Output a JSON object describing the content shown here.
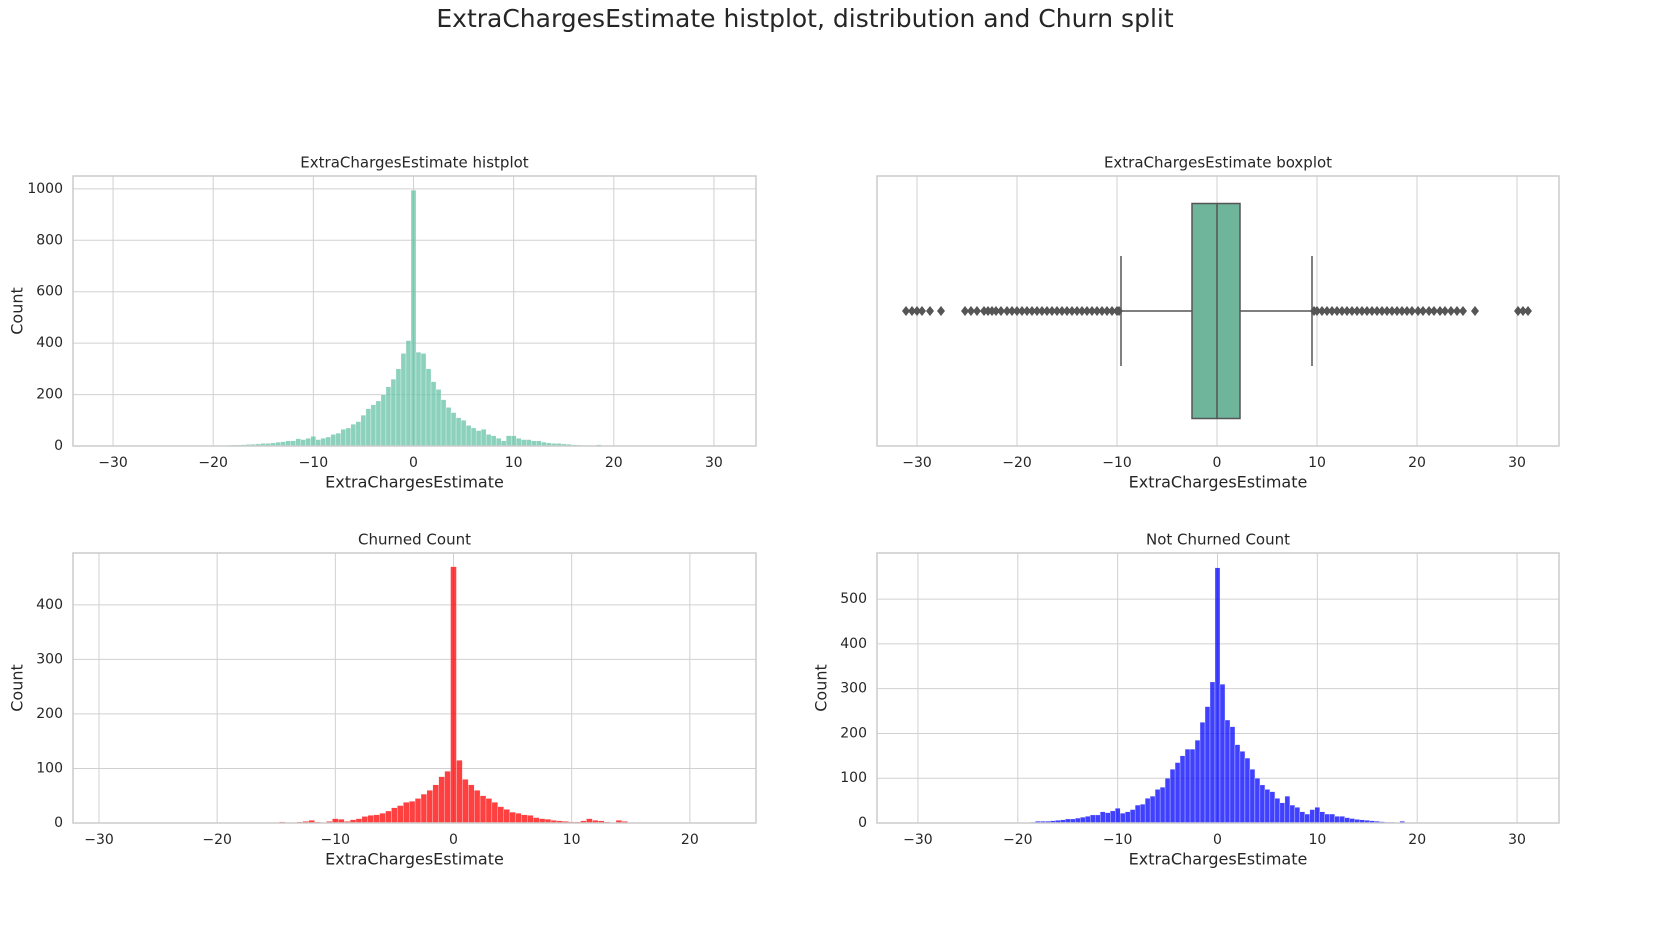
{
  "title": "ExtraChargesEstimate histplot, distribution and Churn split",
  "chart_data": [
    {
      "type": "histogram",
      "title": "ExtraChargesEstimate histplot",
      "xlabel": "ExtraChargesEstimate",
      "ylabel": "Count",
      "color": "#66c2a5",
      "bins": [
        -20.25,
        -19.75,
        -19.25,
        -18.75,
        -18.25,
        -17.75,
        -17.25,
        -16.75,
        -16.25,
        -15.75,
        -15.25,
        -14.75,
        -14.25,
        -13.75,
        -13.25,
        -12.75,
        -12.25,
        -11.75,
        -11.25,
        -10.75,
        -10.25,
        -9.75,
        -9.25,
        -8.75,
        -8.25,
        -7.75,
        -7.25,
        -6.75,
        -6.25,
        -5.75,
        -5.25,
        -4.75,
        -4.25,
        -3.75,
        -3.25,
        -2.75,
        -2.25,
        -1.75,
        -1.25,
        -0.75,
        -0.25,
        0.25,
        0.75,
        1.25,
        1.75,
        2.25,
        2.75,
        3.25,
        3.75,
        4.25,
        4.75,
        5.25,
        5.75,
        6.25,
        6.75,
        7.25,
        7.75,
        8.25,
        8.75,
        9.25,
        9.75,
        10.25,
        10.75,
        11.25,
        11.75,
        12.25,
        12.75,
        13.25,
        13.75,
        14.25,
        14.75,
        15.25,
        15.75,
        16.25,
        16.75,
        17.25,
        17.75,
        18.25,
        18.75,
        19.25,
        19.75,
        20.25
      ],
      "values": [
        1,
        1,
        2,
        3,
        4,
        4,
        5,
        6,
        7,
        8,
        10,
        10,
        12,
        15,
        17,
        20,
        20,
        28,
        25,
        30,
        38,
        25,
        30,
        35,
        45,
        50,
        65,
        70,
        85,
        95,
        120,
        145,
        160,
        175,
        200,
        230,
        260,
        300,
        360,
        410,
        995,
        365,
        360,
        300,
        250,
        220,
        180,
        150,
        130,
        110,
        100,
        80,
        70,
        60,
        65,
        45,
        40,
        30,
        20,
        40,
        40,
        30,
        25,
        25,
        20,
        20,
        15,
        12,
        10,
        10,
        8,
        7,
        5,
        4,
        3,
        3,
        2,
        5,
        1,
        0,
        0
      ],
      "xlim": [
        -34,
        34.2
      ],
      "ylim": [
        0,
        1050
      ],
      "xticks": [
        {
          "value": -30,
          "label": "−30"
        },
        {
          "value": -20,
          "label": "−20"
        },
        {
          "value": -10,
          "label": "−10"
        },
        0,
        10,
        20,
        30
      ],
      "yticks": [
        0,
        200,
        400,
        600,
        800,
        1000
      ],
      "grid": true
    },
    {
      "type": "box",
      "title": "ExtraChargesEstimate boxplot",
      "xlabel": "ExtraChargesEstimate",
      "color": "#6fb59b",
      "whislo": -9.6,
      "q1": -2.5,
      "median": 0,
      "q3": 2.3,
      "whishi": 9.5,
      "fliers": [
        -31.1,
        -30.5,
        -30,
        -29.5,
        -28.7,
        -27.6,
        -25.2,
        -24.6,
        -24,
        -23.3,
        -22.9,
        -22.5,
        -22.1,
        -21.6,
        -21,
        -20.5,
        -20,
        -19.5,
        -19,
        -18.5,
        -18,
        -17.5,
        -17,
        -16.5,
        -16,
        -15.5,
        -15,
        -14.5,
        -14,
        -13.5,
        -13,
        -12.5,
        -12,
        -11.5,
        -11,
        -10.5,
        -10,
        -9.8,
        9.7,
        10,
        10.5,
        11,
        11.5,
        12,
        12.5,
        13,
        13.5,
        14,
        14.5,
        15,
        15.5,
        16,
        16.5,
        17,
        17.5,
        18,
        18.5,
        19,
        19.5,
        20.1,
        20.6,
        21.2,
        21.7,
        22.3,
        22.8,
        23.4,
        24,
        24.6,
        25.8,
        30.1,
        30.6,
        31.1
      ],
      "xlim": [
        -34,
        34.2
      ],
      "xticks": [
        {
          "value": -30,
          "label": "−30"
        },
        {
          "value": -20,
          "label": "−20"
        },
        {
          "value": -10,
          "label": "−10"
        },
        0,
        10,
        20,
        30
      ],
      "grid": true
    },
    {
      "type": "histogram",
      "title": "Churned Count",
      "xlabel": "ExtraChargesEstimate",
      "ylabel": "Count",
      "color": "#ff0000",
      "bins": [
        -15.25,
        -14.75,
        -14.25,
        -13.75,
        -13.25,
        -12.75,
        -12.25,
        -11.75,
        -11.25,
        -10.75,
        -10.25,
        -9.75,
        -9.25,
        -8.75,
        -8.25,
        -7.75,
        -7.25,
        -6.75,
        -6.25,
        -5.75,
        -5.25,
        -4.75,
        -4.25,
        -3.75,
        -3.25,
        -2.75,
        -2.25,
        -1.75,
        -1.25,
        -0.75,
        -0.25,
        0.25,
        0.75,
        1.25,
        1.75,
        2.25,
        2.75,
        3.25,
        3.75,
        4.25,
        4.75,
        5.25,
        5.75,
        6.25,
        6.75,
        7.25,
        7.75,
        8.25,
        8.75,
        9.25,
        9.75,
        10.25,
        10.75,
        11.25,
        11.75,
        12.25,
        12.75,
        13.25,
        13.75,
        14.25,
        14.75,
        15.25,
        15.75,
        16.25,
        16.75,
        17.25
      ],
      "values": [
        1,
        2,
        1,
        1,
        2,
        3,
        5,
        2,
        1,
        3,
        8,
        7,
        3,
        6,
        8,
        12,
        14,
        15,
        18,
        22,
        28,
        32,
        38,
        40,
        45,
        53,
        60,
        70,
        85,
        95,
        470,
        115,
        80,
        70,
        60,
        50,
        45,
        38,
        30,
        25,
        20,
        18,
        15,
        14,
        10,
        8,
        7,
        5,
        4,
        3,
        2,
        2,
        4,
        8,
        5,
        4,
        2,
        1,
        5,
        3,
        1,
        1,
        0,
        1,
        0
      ],
      "xlim": [
        -32.2,
        25.6
      ],
      "ylim": [
        0,
        495
      ],
      "xticks": [
        {
          "value": -30,
          "label": "−30"
        },
        {
          "value": -20,
          "label": "−20"
        },
        {
          "value": -10,
          "label": "−10"
        },
        0,
        10,
        20
      ],
      "yticks": [
        0,
        100,
        200,
        300,
        400
      ],
      "grid": true
    },
    {
      "type": "histogram",
      "title": "Not Churned Count",
      "xlabel": "ExtraChargesEstimate",
      "ylabel": "Count",
      "color": "#0000ff",
      "bins": [
        -20.25,
        -19.75,
        -19.25,
        -18.75,
        -18.25,
        -17.75,
        -17.25,
        -16.75,
        -16.25,
        -15.75,
        -15.25,
        -14.75,
        -14.25,
        -13.75,
        -13.25,
        -12.75,
        -12.25,
        -11.75,
        -11.25,
        -10.75,
        -10.25,
        -9.75,
        -9.25,
        -8.75,
        -8.25,
        -7.75,
        -7.25,
        -6.75,
        -6.25,
        -5.75,
        -5.25,
        -4.75,
        -4.25,
        -3.75,
        -3.25,
        -2.75,
        -2.25,
        -1.75,
        -1.25,
        -0.75,
        -0.25,
        0.25,
        0.75,
        1.25,
        1.75,
        2.25,
        2.75,
        3.25,
        3.75,
        4.25,
        4.75,
        5.25,
        5.75,
        6.25,
        6.75,
        7.25,
        7.75,
        8.25,
        8.75,
        9.25,
        9.75,
        10.25,
        10.75,
        11.25,
        11.75,
        12.25,
        12.75,
        13.25,
        13.75,
        14.25,
        14.75,
        15.25,
        15.75,
        16.25,
        16.75,
        17.25,
        17.75,
        18.25,
        18.75,
        19.25,
        19.75,
        20.25
      ],
      "values": [
        1,
        1,
        1,
        2,
        4,
        4,
        4,
        5,
        6,
        7,
        9,
        9,
        11,
        13,
        15,
        18,
        18,
        25,
        23,
        27,
        33,
        22,
        25,
        30,
        40,
        42,
        55,
        60,
        75,
        80,
        100,
        120,
        135,
        150,
        165,
        165,
        185,
        225,
        260,
        315,
        570,
        310,
        230,
        215,
        175,
        160,
        145,
        120,
        100,
        85,
        75,
        70,
        55,
        45,
        60,
        40,
        35,
        25,
        20,
        30,
        35,
        25,
        20,
        20,
        15,
        15,
        12,
        10,
        8,
        7,
        6,
        5,
        4,
        3,
        2,
        2,
        1,
        4,
        1,
        0,
        0
      ],
      "xlim": [
        -34.1,
        34.2
      ],
      "ylim": [
        0,
        603
      ],
      "xticks": [
        {
          "value": -30,
          "label": "−30"
        },
        {
          "value": -20,
          "label": "−20"
        },
        {
          "value": -10,
          "label": "−10"
        },
        0,
        10,
        20,
        30
      ],
      "yticks": [
        0,
        100,
        200,
        300,
        400,
        500
      ],
      "grid": true
    }
  ]
}
